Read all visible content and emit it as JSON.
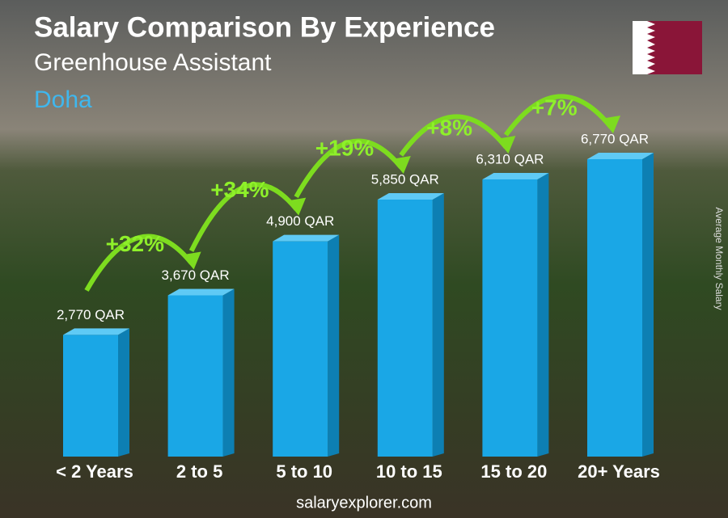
{
  "chart_data": {
    "type": "bar",
    "title": "Salary Comparison By Experience",
    "subtitle": "Greenhouse Assistant",
    "location": "Doha",
    "y_axis_label": "Average Monthly Salary",
    "footer": "salaryexplorer.com",
    "categories": [
      "< 2 Years",
      "2 to 5",
      "5 to 10",
      "10 to 15",
      "15 to 20",
      "20+ Years"
    ],
    "values": [
      2770,
      3670,
      4900,
      5850,
      6310,
      6770
    ],
    "value_labels": [
      "2,770 QAR",
      "3,670 QAR",
      "4,900 QAR",
      "5,850 QAR",
      "6,310 QAR",
      "6,770 QAR"
    ],
    "annotations": [
      "+32%",
      "+34%",
      "+19%",
      "+8%",
      "+7%"
    ],
    "color": "#1aa7e6"
  }
}
